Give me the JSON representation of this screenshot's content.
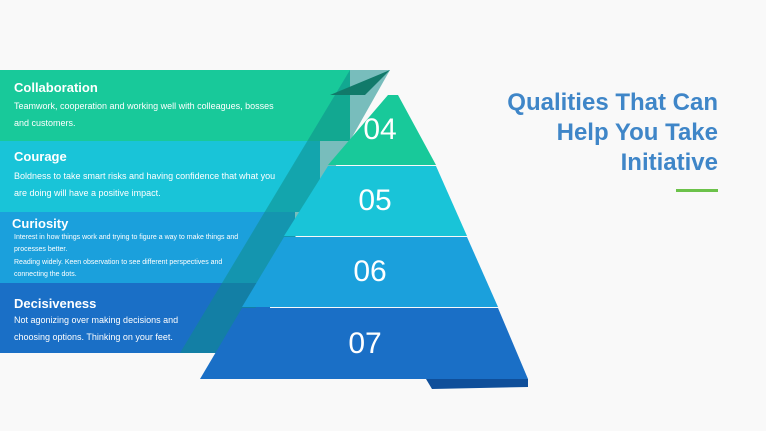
{
  "heading": {
    "line1": "Qualities That Can",
    "line2": "Help You Take",
    "line3": "Initiative"
  },
  "levels": [
    {
      "number": "04",
      "title": "Collaboration",
      "desc": "Teamwork, cooperation and working well with colleagues, bosses and customers.",
      "color": "#18c99a"
    },
    {
      "number": "05",
      "title": "Courage",
      "desc": "Boldness to take smart risks and having confidence that what you are doing will have a positive impact.",
      "color": "#19c4d8"
    },
    {
      "number": "06",
      "title": "Curiosity",
      "desc_line1": "Interest in how things work and trying to figure a way to make things and processes better.",
      "desc_line2": "Reading widely. Keen observation to see different perspectives and connecting the dots.",
      "color": "#1ba0dc"
    },
    {
      "number": "07",
      "title": "Decisiveness",
      "desc": "Not agonizing over making decisions and choosing options. Thinking on your feet.",
      "color": "#1a6fc6"
    }
  ],
  "accent_line_color": "#6cc24a",
  "heading_color": "#3f86c8"
}
